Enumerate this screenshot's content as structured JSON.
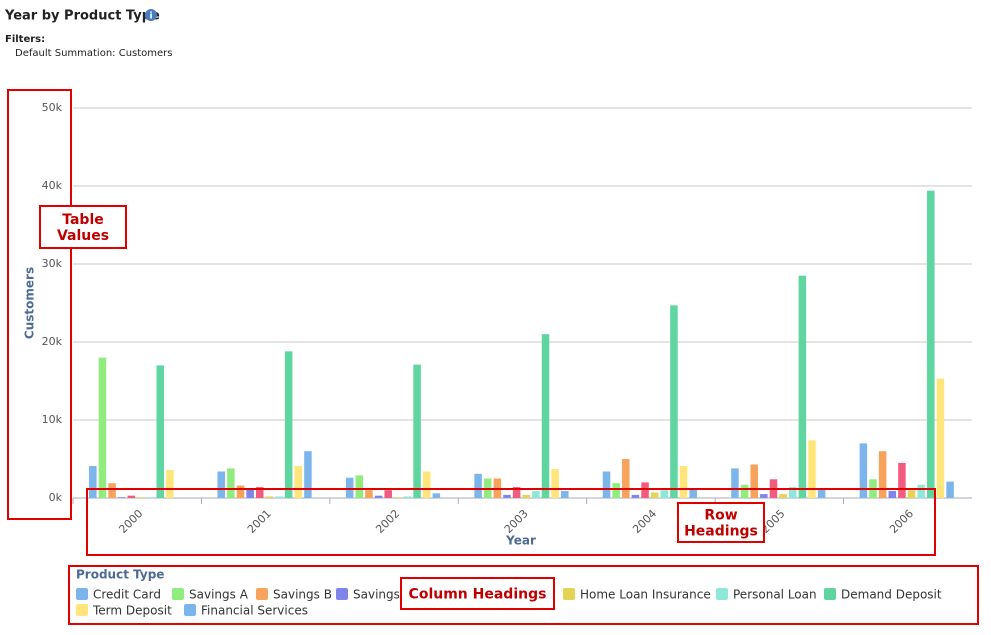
{
  "header": {
    "title": "Year by Product Type",
    "filters_label": "Filters:",
    "filter": "Default Summation: Customers"
  },
  "chart_data": {
    "type": "bar",
    "x_label": "Year",
    "y_label": "Customers",
    "legend_title": "Product Type",
    "categories": [
      "2000",
      "2001",
      "2002",
      "2003",
      "2004",
      "2005",
      "2006"
    ],
    "series": [
      {
        "name": "Credit Card",
        "color": "#7cb5ec",
        "values": [
          4100,
          3400,
          2600,
          3100,
          3400,
          3800,
          7000
        ]
      },
      {
        "name": "Savings A",
        "color": "#90ed7d",
        "values": [
          18000,
          3800,
          2900,
          2500,
          1900,
          1700,
          2400
        ]
      },
      {
        "name": "Savings B",
        "color": "#f7a35c",
        "values": [
          1900,
          1600,
          1000,
          2500,
          5000,
          4300,
          6000
        ]
      },
      {
        "name": "Savings",
        "color": "#8085e9",
        "values": [
          100,
          1100,
          300,
          400,
          400,
          500,
          900
        ]
      },
      {
        "name": null,
        "color": "#f15c80",
        "values": [
          300,
          1400,
          1000,
          1400,
          2000,
          2400,
          4500
        ]
      },
      {
        "name": "Home Loan Insurance",
        "color": "#e4d354",
        "values": [
          100,
          200,
          100,
          400,
          700,
          500,
          1000
        ]
      },
      {
        "name": "Personal Loan",
        "color": "#8ee8d8",
        "values": [
          100,
          200,
          200,
          900,
          1000,
          1400,
          1700
        ]
      },
      {
        "name": "Demand Deposit",
        "color": "#5fd5a0",
        "values": [
          17000,
          18800,
          17100,
          21000,
          24700,
          28500,
          39400
        ]
      },
      {
        "name": "Term Deposit",
        "color": "#ffe57a",
        "values": [
          3600,
          4100,
          3400,
          3700,
          4100,
          7400,
          15300
        ]
      },
      {
        "name": "Financial Services",
        "color": "#7cb5ec",
        "values": [
          0,
          6000,
          600,
          900,
          1100,
          1100,
          2100
        ]
      }
    ],
    "ylim": [
      0,
      50000
    ],
    "yticks": [
      {
        "value": 0,
        "label": "0k"
      },
      {
        "value": 10000,
        "label": "10k"
      },
      {
        "value": 20000,
        "label": "20k"
      },
      {
        "value": 30000,
        "label": "30k"
      },
      {
        "value": 40000,
        "label": "40k"
      },
      {
        "value": 50000,
        "label": "50k"
      }
    ],
    "grid": true
  },
  "annotations": [
    "Table Values",
    "Row Headings",
    "Column Headings"
  ]
}
